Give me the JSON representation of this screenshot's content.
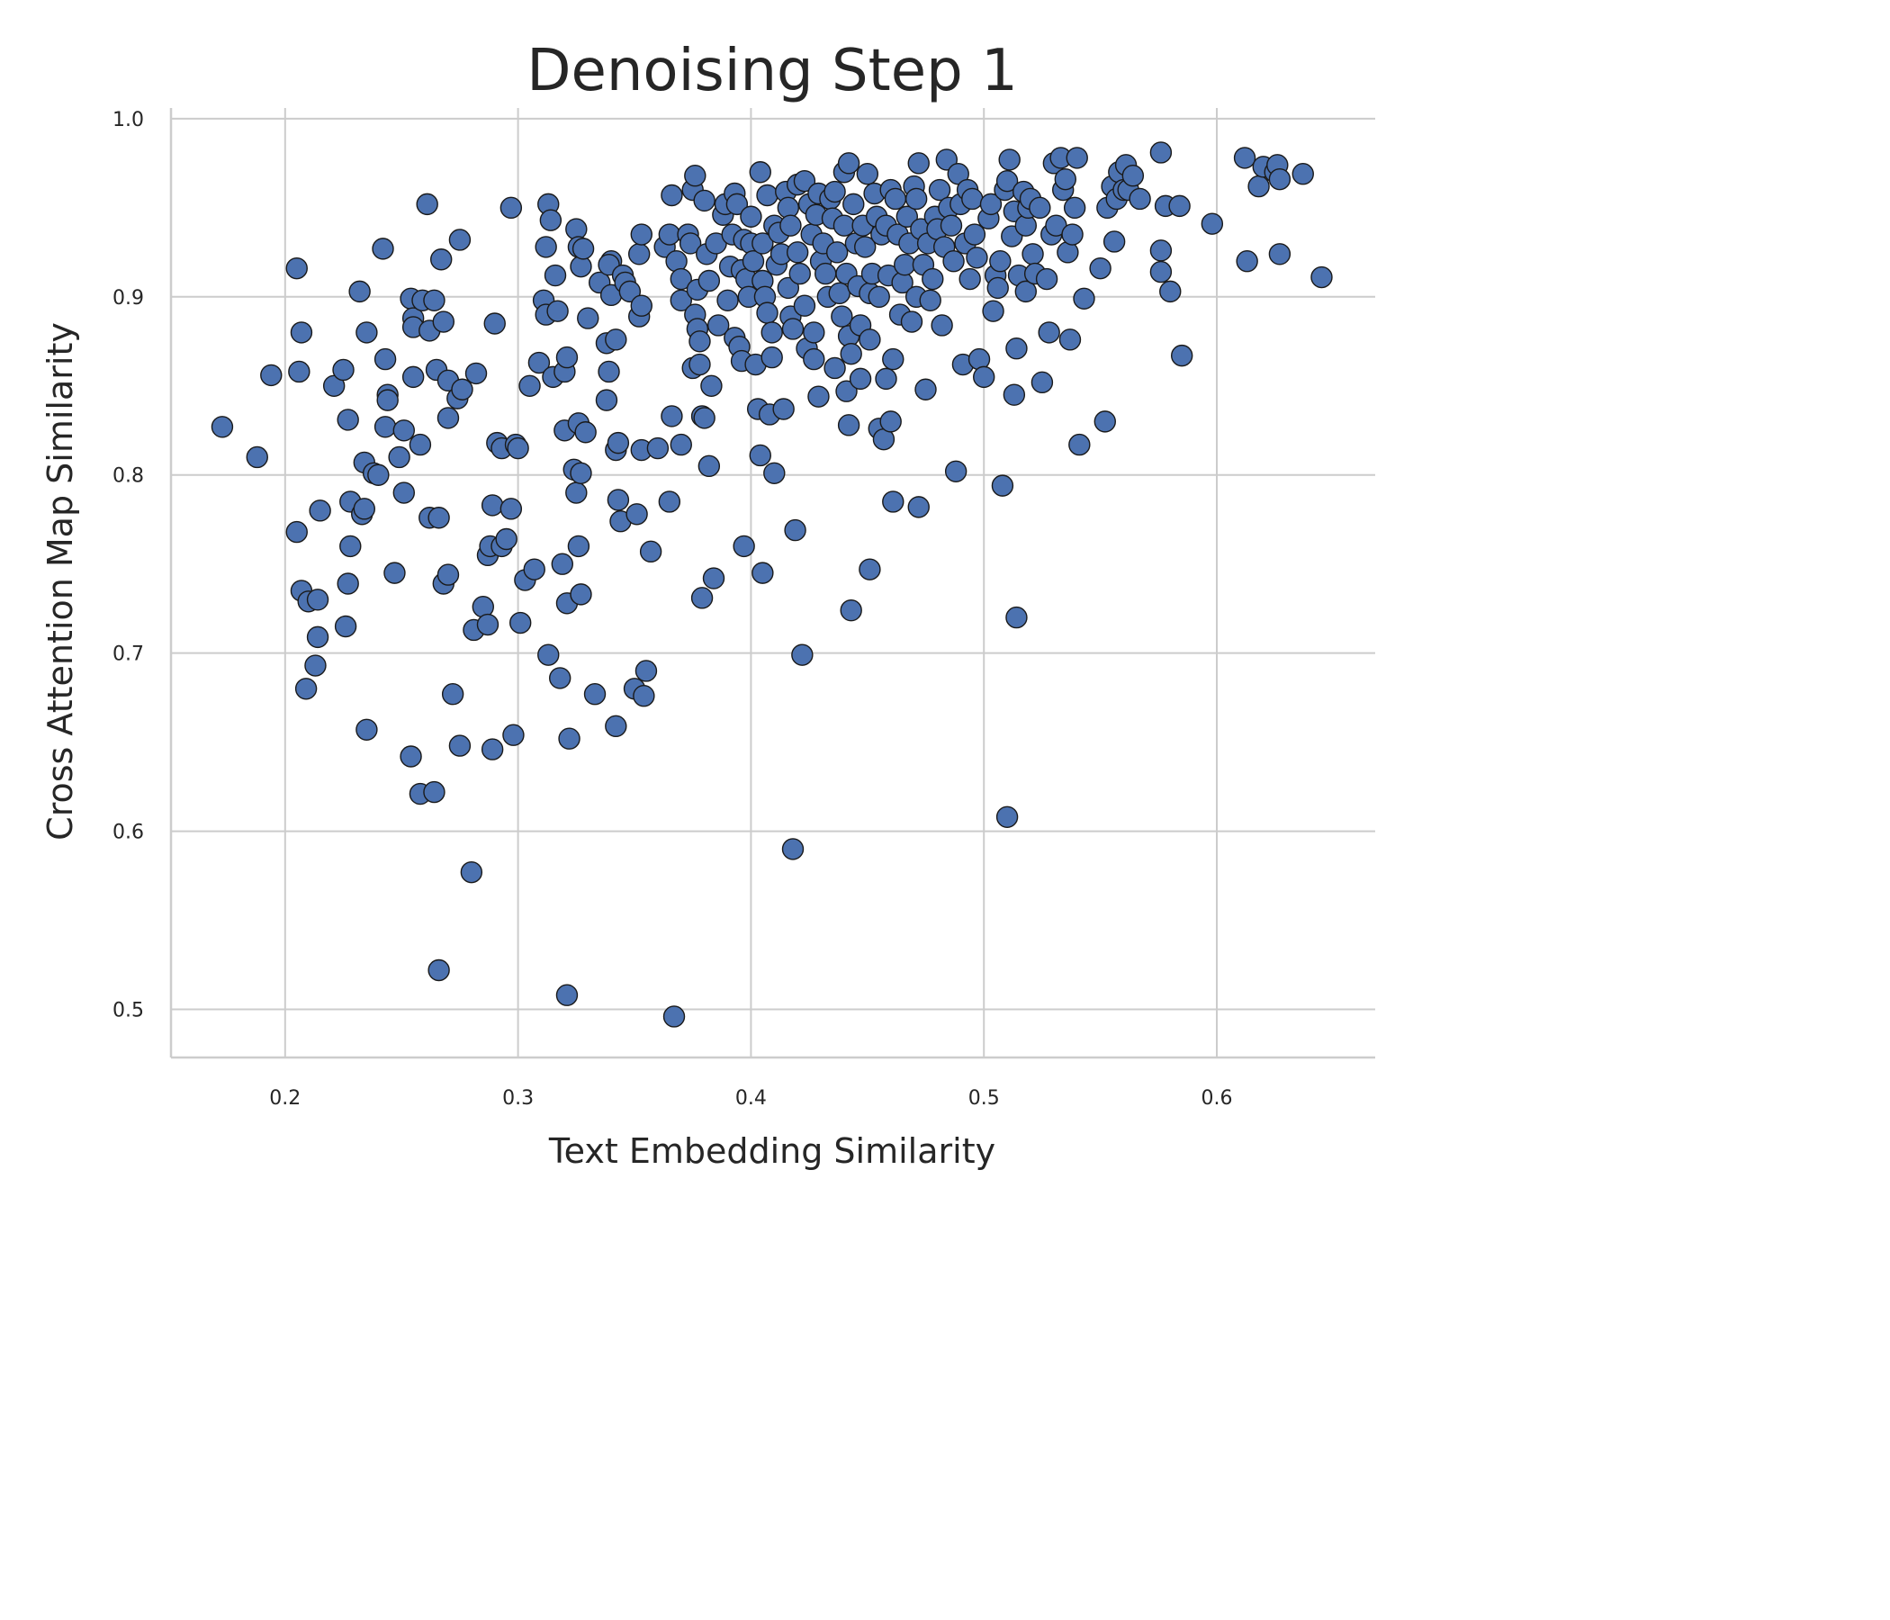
{
  "chart_data": {
    "type": "scatter",
    "title": "Denoising Step 1",
    "xlabel": "Text Embedding Similarity",
    "ylabel": "Cross Attention Map Similarity",
    "xlim": [
      0.151,
      0.668
    ],
    "ylim": [
      0.473,
      1.006
    ],
    "xticks": [
      "0.2",
      "0.3",
      "0.4",
      "0.5",
      "0.6"
    ],
    "yticks": [
      "0.5",
      "0.6",
      "0.7",
      "0.8",
      "0.9",
      "1.0"
    ],
    "grid": true,
    "colors": {
      "marker": "#4C72B0",
      "edge": "#1a1a1a",
      "grid": "#cccccc",
      "text": "#262626"
    },
    "points": [
      [
        0.173,
        0.827
      ],
      [
        0.188,
        0.81
      ],
      [
        0.194,
        0.856
      ],
      [
        0.205,
        0.916
      ],
      [
        0.206,
        0.858
      ],
      [
        0.207,
        0.88
      ],
      [
        0.205,
        0.768
      ],
      [
        0.207,
        0.735
      ],
      [
        0.21,
        0.729
      ],
      [
        0.209,
        0.68
      ],
      [
        0.214,
        0.73
      ],
      [
        0.214,
        0.709
      ],
      [
        0.213,
        0.693
      ],
      [
        0.215,
        0.78
      ],
      [
        0.221,
        0.85
      ],
      [
        0.225,
        0.859
      ],
      [
        0.227,
        0.831
      ],
      [
        0.226,
        0.715
      ],
      [
        0.227,
        0.739
      ],
      [
        0.228,
        0.76
      ],
      [
        0.228,
        0.785
      ],
      [
        0.232,
        0.903
      ],
      [
        0.233,
        0.778
      ],
      [
        0.234,
        0.807
      ],
      [
        0.235,
        0.88
      ],
      [
        0.234,
        0.781
      ],
      [
        0.235,
        0.657
      ],
      [
        0.238,
        0.801
      ],
      [
        0.24,
        0.8
      ],
      [
        0.242,
        0.927
      ],
      [
        0.243,
        0.865
      ],
      [
        0.244,
        0.845
      ],
      [
        0.244,
        0.842
      ],
      [
        0.243,
        0.827
      ],
      [
        0.247,
        0.745
      ],
      [
        0.249,
        0.81
      ],
      [
        0.251,
        0.825
      ],
      [
        0.251,
        0.79
      ],
      [
        0.254,
        0.899
      ],
      [
        0.255,
        0.888
      ],
      [
        0.255,
        0.883
      ],
      [
        0.255,
        0.855
      ],
      [
        0.258,
        0.817
      ],
      [
        0.259,
        0.898
      ],
      [
        0.254,
        0.642
      ],
      [
        0.258,
        0.621
      ],
      [
        0.261,
        0.952
      ],
      [
        0.262,
        0.881
      ],
      [
        0.264,
        0.898
      ],
      [
        0.265,
        0.859
      ],
      [
        0.262,
        0.776
      ],
      [
        0.266,
        0.776
      ],
      [
        0.264,
        0.622
      ],
      [
        0.267,
        0.921
      ],
      [
        0.268,
        0.886
      ],
      [
        0.27,
        0.853
      ],
      [
        0.27,
        0.832
      ],
      [
        0.268,
        0.739
      ],
      [
        0.27,
        0.744
      ],
      [
        0.272,
        0.677
      ],
      [
        0.266,
        0.522
      ],
      [
        0.274,
        0.843
      ],
      [
        0.275,
        0.932
      ],
      [
        0.276,
        0.848
      ],
      [
        0.275,
        0.648
      ],
      [
        0.282,
        0.857
      ],
      [
        0.281,
        0.713
      ],
      [
        0.28,
        0.577
      ],
      [
        0.285,
        0.726
      ],
      [
        0.287,
        0.755
      ],
      [
        0.287,
        0.716
      ],
      [
        0.288,
        0.76
      ],
      [
        0.289,
        0.783
      ],
      [
        0.29,
        0.885
      ],
      [
        0.289,
        0.646
      ],
      [
        0.291,
        0.818
      ],
      [
        0.293,
        0.815
      ],
      [
        0.293,
        0.76
      ],
      [
        0.295,
        0.764
      ],
      [
        0.297,
        0.95
      ],
      [
        0.297,
        0.781
      ],
      [
        0.298,
        0.654
      ],
      [
        0.299,
        0.817
      ],
      [
        0.3,
        0.815
      ],
      [
        0.301,
        0.717
      ],
      [
        0.303,
        0.741
      ],
      [
        0.305,
        0.85
      ],
      [
        0.307,
        0.747
      ],
      [
        0.309,
        0.863
      ],
      [
        0.311,
        0.898
      ],
      [
        0.312,
        0.928
      ],
      [
        0.312,
        0.89
      ],
      [
        0.313,
        0.952
      ],
      [
        0.314,
        0.943
      ],
      [
        0.313,
        0.699
      ],
      [
        0.315,
        0.855
      ],
      [
        0.316,
        0.912
      ],
      [
        0.317,
        0.892
      ],
      [
        0.318,
        0.686
      ],
      [
        0.319,
        0.75
      ],
      [
        0.32,
        0.858
      ],
      [
        0.321,
        0.866
      ],
      [
        0.32,
        0.825
      ],
      [
        0.321,
        0.728
      ],
      [
        0.322,
        0.652
      ],
      [
        0.321,
        0.508
      ],
      [
        0.325,
        0.938
      ],
      [
        0.326,
        0.928
      ],
      [
        0.327,
        0.917
      ],
      [
        0.328,
        0.927
      ],
      [
        0.324,
        0.803
      ],
      [
        0.326,
        0.829
      ],
      [
        0.325,
        0.79
      ],
      [
        0.327,
        0.801
      ],
      [
        0.326,
        0.76
      ],
      [
        0.327,
        0.733
      ],
      [
        0.33,
        0.888
      ],
      [
        0.329,
        0.824
      ],
      [
        0.333,
        0.677
      ],
      [
        0.335,
        0.908
      ],
      [
        0.338,
        0.874
      ],
      [
        0.338,
        0.842
      ],
      [
        0.339,
        0.858
      ],
      [
        0.34,
        0.92
      ],
      [
        0.34,
        0.901
      ],
      [
        0.339,
        0.918
      ],
      [
        0.342,
        0.876
      ],
      [
        0.342,
        0.814
      ],
      [
        0.343,
        0.818
      ],
      [
        0.343,
        0.786
      ],
      [
        0.344,
        0.774
      ],
      [
        0.342,
        0.659
      ],
      [
        0.345,
        0.912
      ],
      [
        0.346,
        0.908
      ],
      [
        0.348,
        0.903
      ],
      [
        0.35,
        0.68
      ],
      [
        0.352,
        0.924
      ],
      [
        0.352,
        0.889
      ],
      [
        0.353,
        0.935
      ],
      [
        0.353,
        0.895
      ],
      [
        0.353,
        0.814
      ],
      [
        0.351,
        0.778
      ],
      [
        0.354,
        0.676
      ],
      [
        0.355,
        0.69
      ],
      [
        0.357,
        0.757
      ],
      [
        0.36,
        0.815
      ],
      [
        0.363,
        0.928
      ],
      [
        0.365,
        0.935
      ],
      [
        0.366,
        0.957
      ],
      [
        0.366,
        0.833
      ],
      [
        0.365,
        0.785
      ],
      [
        0.367,
        0.496
      ],
      [
        0.368,
        0.92
      ],
      [
        0.37,
        0.898
      ],
      [
        0.37,
        0.817
      ],
      [
        0.37,
        0.91
      ],
      [
        0.373,
        0.935
      ],
      [
        0.374,
        0.93
      ],
      [
        0.375,
        0.96
      ],
      [
        0.376,
        0.968
      ],
      [
        0.375,
        0.86
      ],
      [
        0.377,
        0.904
      ],
      [
        0.376,
        0.89
      ],
      [
        0.377,
        0.882
      ],
      [
        0.378,
        0.862
      ],
      [
        0.379,
        0.833
      ],
      [
        0.378,
        0.875
      ],
      [
        0.38,
        0.832
      ],
      [
        0.379,
        0.731
      ],
      [
        0.38,
        0.954
      ],
      [
        0.381,
        0.924
      ],
      [
        0.382,
        0.909
      ],
      [
        0.383,
        0.85
      ],
      [
        0.382,
        0.805
      ],
      [
        0.384,
        0.742
      ],
      [
        0.385,
        0.93
      ],
      [
        0.386,
        0.884
      ],
      [
        0.388,
        0.946
      ],
      [
        0.389,
        0.952
      ],
      [
        0.39,
        0.898
      ],
      [
        0.391,
        0.917
      ],
      [
        0.392,
        0.935
      ],
      [
        0.393,
        0.958
      ],
      [
        0.394,
        0.952
      ],
      [
        0.393,
        0.877
      ],
      [
        0.395,
        0.872
      ],
      [
        0.396,
        0.915
      ],
      [
        0.397,
        0.932
      ],
      [
        0.396,
        0.864
      ],
      [
        0.397,
        0.76
      ],
      [
        0.398,
        0.91
      ],
      [
        0.399,
        0.9
      ],
      [
        0.4,
        0.93
      ],
      [
        0.4,
        0.945
      ],
      [
        0.401,
        0.92
      ],
      [
        0.402,
        0.862
      ],
      [
        0.403,
        0.837
      ],
      [
        0.404,
        0.97
      ],
      [
        0.405,
        0.93
      ],
      [
        0.405,
        0.909
      ],
      [
        0.404,
        0.811
      ],
      [
        0.405,
        0.745
      ],
      [
        0.406,
        0.9
      ],
      [
        0.407,
        0.891
      ],
      [
        0.407,
        0.957
      ],
      [
        0.408,
        0.834
      ],
      [
        0.409,
        0.88
      ],
      [
        0.409,
        0.866
      ],
      [
        0.41,
        0.94
      ],
      [
        0.41,
        0.801
      ],
      [
        0.411,
        0.918
      ],
      [
        0.412,
        0.936
      ],
      [
        0.413,
        0.924
      ],
      [
        0.414,
        0.837
      ],
      [
        0.415,
        0.959
      ],
      [
        0.416,
        0.95
      ],
      [
        0.416,
        0.905
      ],
      [
        0.417,
        0.889
      ],
      [
        0.417,
        0.94
      ],
      [
        0.418,
        0.882
      ],
      [
        0.418,
        0.59
      ],
      [
        0.419,
        0.769
      ],
      [
        0.42,
        0.963
      ],
      [
        0.42,
        0.925
      ],
      [
        0.421,
        0.913
      ],
      [
        0.422,
        0.699
      ],
      [
        0.423,
        0.965
      ],
      [
        0.423,
        0.895
      ],
      [
        0.424,
        0.871
      ],
      [
        0.425,
        0.952
      ],
      [
        0.426,
        0.935
      ],
      [
        0.427,
        0.88
      ],
      [
        0.427,
        0.865
      ],
      [
        0.428,
        0.946
      ],
      [
        0.429,
        0.958
      ],
      [
        0.429,
        0.844
      ],
      [
        0.43,
        0.92
      ],
      [
        0.431,
        0.93
      ],
      [
        0.432,
        0.913
      ],
      [
        0.433,
        0.9
      ],
      [
        0.434,
        0.955
      ],
      [
        0.435,
        0.944
      ],
      [
        0.436,
        0.959
      ],
      [
        0.436,
        0.86
      ],
      [
        0.437,
        0.925
      ],
      [
        0.438,
        0.902
      ],
      [
        0.439,
        0.889
      ],
      [
        0.44,
        0.97
      ],
      [
        0.44,
        0.94
      ],
      [
        0.441,
        0.913
      ],
      [
        0.442,
        0.975
      ],
      [
        0.442,
        0.878
      ],
      [
        0.441,
        0.847
      ],
      [
        0.442,
        0.828
      ],
      [
        0.443,
        0.724
      ],
      [
        0.443,
        0.868
      ],
      [
        0.444,
        0.952
      ],
      [
        0.445,
        0.93
      ],
      [
        0.446,
        0.906
      ],
      [
        0.447,
        0.884
      ],
      [
        0.447,
        0.854
      ],
      [
        0.448,
        0.94
      ],
      [
        0.449,
        0.928
      ],
      [
        0.45,
        0.969
      ],
      [
        0.451,
        0.902
      ],
      [
        0.451,
        0.876
      ],
      [
        0.451,
        0.747
      ],
      [
        0.452,
        0.913
      ],
      [
        0.453,
        0.958
      ],
      [
        0.454,
        0.945
      ],
      [
        0.455,
        0.9
      ],
      [
        0.455,
        0.826
      ],
      [
        0.456,
        0.935
      ],
      [
        0.457,
        0.82
      ],
      [
        0.458,
        0.94
      ],
      [
        0.458,
        0.854
      ],
      [
        0.459,
        0.912
      ],
      [
        0.46,
        0.96
      ],
      [
        0.46,
        0.83
      ],
      [
        0.461,
        0.865
      ],
      [
        0.461,
        0.785
      ],
      [
        0.462,
        0.955
      ],
      [
        0.463,
        0.935
      ],
      [
        0.464,
        0.89
      ],
      [
        0.465,
        0.908
      ],
      [
        0.466,
        0.918
      ],
      [
        0.467,
        0.945
      ],
      [
        0.468,
        0.93
      ],
      [
        0.469,
        0.886
      ],
      [
        0.47,
        0.962
      ],
      [
        0.471,
        0.955
      ],
      [
        0.471,
        0.9
      ],
      [
        0.472,
        0.975
      ],
      [
        0.472,
        0.782
      ],
      [
        0.473,
        0.938
      ],
      [
        0.474,
        0.918
      ],
      [
        0.475,
        0.848
      ],
      [
        0.476,
        0.93
      ],
      [
        0.477,
        0.898
      ],
      [
        0.478,
        0.91
      ],
      [
        0.479,
        0.945
      ],
      [
        0.48,
        0.938
      ],
      [
        0.481,
        0.96
      ],
      [
        0.482,
        0.884
      ],
      [
        0.483,
        0.928
      ],
      [
        0.484,
        0.977
      ],
      [
        0.485,
        0.95
      ],
      [
        0.486,
        0.94
      ],
      [
        0.487,
        0.92
      ],
      [
        0.488,
        0.802
      ],
      [
        0.489,
        0.969
      ],
      [
        0.49,
        0.952
      ],
      [
        0.491,
        0.862
      ],
      [
        0.492,
        0.93
      ],
      [
        0.493,
        0.96
      ],
      [
        0.494,
        0.91
      ],
      [
        0.495,
        0.955
      ],
      [
        0.496,
        0.935
      ],
      [
        0.497,
        0.922
      ],
      [
        0.498,
        0.865
      ],
      [
        0.5,
        0.855
      ],
      [
        0.502,
        0.944
      ],
      [
        0.503,
        0.952
      ],
      [
        0.504,
        0.892
      ],
      [
        0.505,
        0.912
      ],
      [
        0.506,
        0.905
      ],
      [
        0.507,
        0.92
      ],
      [
        0.508,
        0.794
      ],
      [
        0.509,
        0.96
      ],
      [
        0.51,
        0.965
      ],
      [
        0.511,
        0.977
      ],
      [
        0.51,
        0.608
      ],
      [
        0.512,
        0.934
      ],
      [
        0.513,
        0.948
      ],
      [
        0.513,
        0.845
      ],
      [
        0.514,
        0.871
      ],
      [
        0.514,
        0.72
      ],
      [
        0.515,
        0.912
      ],
      [
        0.517,
        0.959
      ],
      [
        0.518,
        0.94
      ],
      [
        0.518,
        0.903
      ],
      [
        0.519,
        0.95
      ],
      [
        0.52,
        0.955
      ],
      [
        0.521,
        0.924
      ],
      [
        0.522,
        0.913
      ],
      [
        0.524,
        0.95
      ],
      [
        0.525,
        0.852
      ],
      [
        0.527,
        0.91
      ],
      [
        0.528,
        0.88
      ],
      [
        0.529,
        0.935
      ],
      [
        0.53,
        0.975
      ],
      [
        0.531,
        0.94
      ],
      [
        0.533,
        0.978
      ],
      [
        0.534,
        0.96
      ],
      [
        0.535,
        0.966
      ],
      [
        0.536,
        0.925
      ],
      [
        0.537,
        0.876
      ],
      [
        0.538,
        0.935
      ],
      [
        0.539,
        0.95
      ],
      [
        0.54,
        0.978
      ],
      [
        0.541,
        0.817
      ],
      [
        0.543,
        0.899
      ],
      [
        0.55,
        0.916
      ],
      [
        0.552,
        0.83
      ],
      [
        0.553,
        0.95
      ],
      [
        0.555,
        0.962
      ],
      [
        0.556,
        0.931
      ],
      [
        0.557,
        0.955
      ],
      [
        0.558,
        0.97
      ],
      [
        0.56,
        0.96
      ],
      [
        0.561,
        0.974
      ],
      [
        0.562,
        0.96
      ],
      [
        0.564,
        0.968
      ],
      [
        0.567,
        0.955
      ],
      [
        0.576,
        0.981
      ],
      [
        0.576,
        0.926
      ],
      [
        0.576,
        0.914
      ],
      [
        0.578,
        0.951
      ],
      [
        0.58,
        0.903
      ],
      [
        0.584,
        0.951
      ],
      [
        0.585,
        0.867
      ],
      [
        0.598,
        0.941
      ],
      [
        0.612,
        0.978
      ],
      [
        0.613,
        0.92
      ],
      [
        0.618,
        0.962
      ],
      [
        0.62,
        0.973
      ],
      [
        0.625,
        0.97
      ],
      [
        0.626,
        0.974
      ],
      [
        0.627,
        0.924
      ],
      [
        0.627,
        0.966
      ],
      [
        0.637,
        0.969
      ],
      [
        0.645,
        0.911
      ]
    ]
  }
}
